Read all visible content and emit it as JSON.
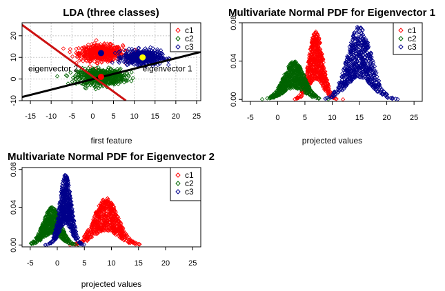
{
  "chart_data": [
    {
      "type": "scatter",
      "title": "LDA (three classes)",
      "xlabel": "first feature",
      "ylabel": "",
      "xlim": [
        -17,
        26
      ],
      "ylim": [
        -10,
        26
      ],
      "xticks": [
        "-15",
        "-10",
        "-5",
        "0",
        "5",
        "10",
        "15",
        "20",
        "25"
      ],
      "yticks": [
        "-10",
        "0",
        "10",
        "20"
      ],
      "grid": true,
      "legend": "top-right",
      "legend_entries": [
        "c1",
        "c2",
        "c3"
      ],
      "series": [
        {
          "name": "c1",
          "color": "#FF0000",
          "center": [
            2,
            12
          ],
          "spread": [
            2.6,
            1.8
          ],
          "count": 600,
          "mean_marker_color": "#00008B"
        },
        {
          "name": "c2",
          "color": "#006400",
          "center": [
            2,
            1
          ],
          "spread": [
            2.8,
            1.8
          ],
          "count": 600,
          "mean_marker_color": "#FF0000"
        },
        {
          "name": "c3",
          "color": "#00008B",
          "center": [
            12,
            10
          ],
          "spread": [
            2.2,
            1.6
          ],
          "count": 600,
          "mean_marker_color": "#FFFF00"
        }
      ],
      "lines": [
        {
          "label": "eigenvector 1",
          "color": "#000000",
          "x": [
            -17,
            26
          ],
          "y": [
            -8.3,
            12.5
          ]
        },
        {
          "label": "eigenvector 2",
          "color": "#CC1111",
          "x": [
            -17,
            8
          ],
          "y": [
            25,
            -10
          ]
        }
      ]
    },
    {
      "type": "scatter",
      "title": "Multivariate Normal PDF for Eigenvector 1",
      "xlabel": "projected values",
      "ylabel": "",
      "xlim": [
        -6.5,
        26.5
      ],
      "ylim": [
        -0.002,
        0.08
      ],
      "xticks": [
        "-5",
        "0",
        "5",
        "10",
        "15",
        "20",
        "25"
      ],
      "yticks": [
        "0.00",
        "0.04",
        "0.08"
      ],
      "legend": "top-right",
      "legend_entries": [
        "c1",
        "c2",
        "c3"
      ],
      "series": [
        {
          "name": "c1",
          "color": "#FF0000",
          "mean": 7.0,
          "sd": 1.3,
          "peak": 0.071
        },
        {
          "name": "c2",
          "color": "#006400",
          "mean": 3.0,
          "sd": 1.9,
          "peak": 0.04
        },
        {
          "name": "c3",
          "color": "#00008B",
          "mean": 15.0,
          "sd": 2.2,
          "peak": 0.077
        }
      ]
    },
    {
      "type": "scatter",
      "title": "Multivariate Normal PDF for Eigenvector 2",
      "xlabel": "projected values",
      "ylabel": "",
      "xlim": [
        -6.5,
        26.5
      ],
      "ylim": [
        -0.002,
        0.082
      ],
      "xticks": [
        "-5",
        "0",
        "5",
        "10",
        "15",
        "20",
        "25"
      ],
      "yticks": [
        "0.00",
        "0.04",
        "0.08"
      ],
      "legend": "top-right",
      "legend_entries": [
        "c1",
        "c2",
        "c3"
      ],
      "series": [
        {
          "name": "c1",
          "color": "#FF0000",
          "mean": 9.0,
          "sd": 2.2,
          "peak": 0.05
        },
        {
          "name": "c2",
          "color": "#006400",
          "mean": -1.0,
          "sd": 1.6,
          "peak": 0.04
        },
        {
          "name": "c3",
          "color": "#00008B",
          "mean": 1.5,
          "sd": 1.1,
          "peak": 0.075
        }
      ]
    }
  ]
}
